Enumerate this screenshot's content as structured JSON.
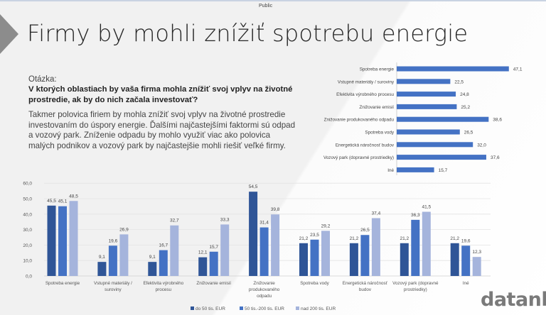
{
  "header": {
    "classification": "Public",
    "title": "Firmy by mohli znížiť spotrebu energie"
  },
  "question": {
    "label": "Otázka:",
    "text": "V ktorých oblastiach by vaša firma mohla znížiť svoj vplyv na životné prostredie, ak by do nich začala investovať?",
    "summary": "Takmer polovica firiem by mohla znížiť svoj vplyv na životné prostredie investovaním do úspory energie. Ďalšími najčastejšími faktormi sú odpad a vozový park. Zníženie odpadu by mohlo využiť viac ako polovica malých podnikov a vozový park by najčastejšie mohli riešiť veľké firmy."
  },
  "logo": {
    "text": "datank",
    "mark": "«"
  },
  "chart_data": [
    {
      "type": "bar",
      "orientation": "horizontal",
      "categories": [
        "Spotreba energie",
        "Vstupné materiály / suroviny",
        "Efektivita výrobného  procesu",
        "Znižovanie emisií",
        "Znižovanie produkovaného  odpadu",
        "Spotreba vody",
        "Energetická náročnosť budov",
        "Vozový park (dopravné  prostriedky)",
        "Iné"
      ],
      "values": [
        47.1,
        22.5,
        24.8,
        25.2,
        38.6,
        26.5,
        32.0,
        37.6,
        15.7
      ],
      "value_labels": [
        "47,1",
        "22,5",
        "24,8",
        "25,2",
        "38,6",
        "26,5",
        "32,0",
        "37,6",
        "15,7"
      ],
      "color": "#4472c4",
      "grid": false
    },
    {
      "type": "bar",
      "orientation": "vertical",
      "categories": [
        "Spotreba energie",
        "Vstupné materiály / suroviny",
        "Efektivita výrobného procesu",
        "Znižovanie emisií",
        "Znižovanie produkovaného odpadu",
        "Spotreba vody",
        "Energetická náročnosť budov",
        "Vozový park (dopravné prostriedky)",
        "Iné"
      ],
      "category_lines": [
        [
          "Spotreba energie"
        ],
        [
          "Vstupné materiály /",
          "suroviny"
        ],
        [
          "Efektivita výrobného",
          "procesu"
        ],
        [
          "Znižovanie emisií"
        ],
        [
          "Znižovanie",
          "produkovaného",
          "odpadu"
        ],
        [
          "Spotreba vody"
        ],
        [
          "Energetická náročnosť",
          "budov"
        ],
        [
          "Vozový park (dopravné",
          "prostriedky)"
        ],
        [
          "Iné"
        ]
      ],
      "series": [
        {
          "name": "do 50 tis. EUR",
          "color": "#2f5597",
          "values": [
            45.5,
            9.1,
            9.1,
            12.1,
            54.5,
            21.2,
            21.2,
            21.2,
            21.2
          ],
          "labels": [
            "45,5",
            "9,1",
            "9,1",
            "12,1",
            "54,5",
            "21,2",
            "21,2",
            "21,2",
            "21,2"
          ]
        },
        {
          "name": "50 tis.-200 tis. EUR",
          "color": "#4472c4",
          "values": [
            45.1,
            19.6,
            16.7,
            15.7,
            31.4,
            23.5,
            26.5,
            36.3,
            19.6
          ],
          "labels": [
            "45,1",
            "19,6",
            "16,7",
            "15,7",
            "31,4",
            "23,5",
            "26,5",
            "36,3",
            "19,6"
          ]
        },
        {
          "name": "nad 200 tis. EUR",
          "color": "#a5b4dc",
          "values": [
            48.5,
            26.9,
            32.7,
            33.3,
            39.8,
            29.2,
            37.4,
            41.5,
            12.3
          ],
          "labels": [
            "48,5",
            "26,9",
            "32,7",
            "33,3",
            "39,8",
            "29,2",
            "37,4",
            "41,5",
            "12,3"
          ]
        }
      ],
      "ylim": [
        0,
        60
      ],
      "yticks": [
        "0,0",
        "10,0",
        "20,0",
        "30,0",
        "40,0",
        "50,0",
        "60,0"
      ],
      "grid": true,
      "legend": "bottom"
    }
  ]
}
